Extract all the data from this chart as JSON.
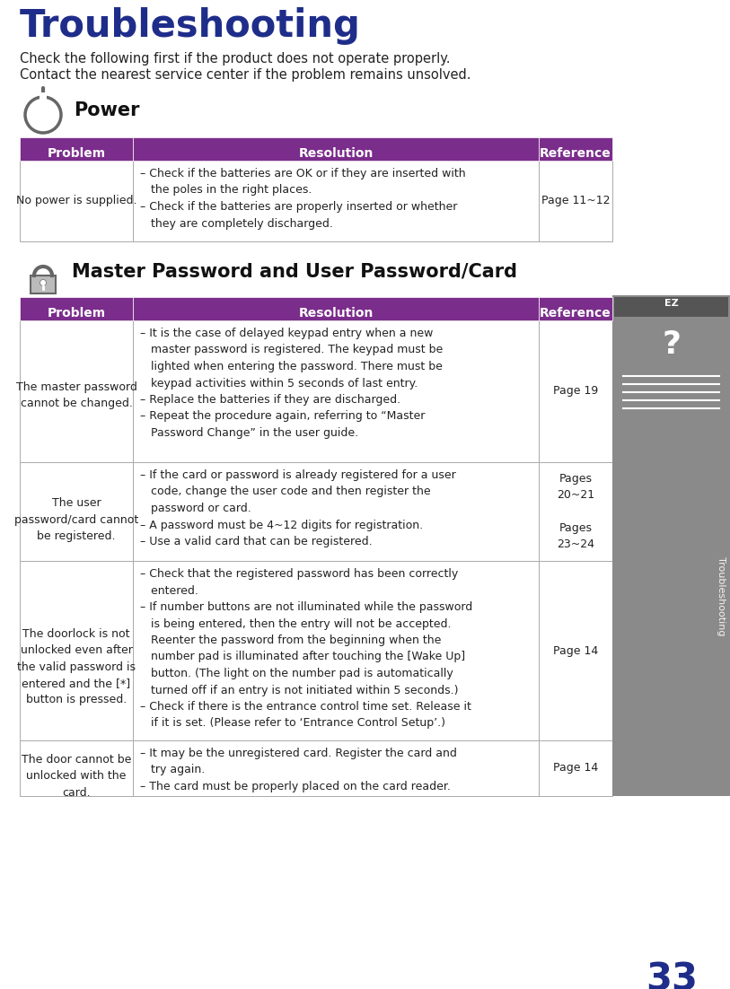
{
  "title": "Troubleshooting",
  "title_color": "#1f2d8a",
  "subtitle_lines": [
    "Check the following first if the product does not operate properly.",
    "Contact the nearest service center if the problem remains unsolved."
  ],
  "header_bg": "#7b2d8b",
  "header_text_color": "#ffffff",
  "border_color": "#aaaaaa",
  "text_color": "#222222",
  "page_number": "33",
  "page_bg": "#ffffff",
  "section1_title": "Power",
  "section2_title": "Master Password and User Password/Card",
  "table_headers": [
    "Problem",
    "Resolution",
    "Reference"
  ],
  "power_rows": [
    {
      "problem": "No power is supplied.",
      "resolution": "– Check if the batteries are OK or if they are inserted with\n   the poles in the right places.\n– Check if the batteries are properly inserted or whether\n   they are completely discharged.",
      "reference": "Page 11~12"
    }
  ],
  "password_rows": [
    {
      "problem": "The master password\ncannot be changed.",
      "resolution": "– It is the case of delayed keypad entry when a new\n   master password is registered. The keypad must be\n   lighted when entering the password. There must be\n   keypad activities within 5 seconds of last entry.\n– Replace the batteries if they are discharged.\n– Repeat the procedure again, referring to “Master\n   Password Change” in the user guide.",
      "reference": "Page 19"
    },
    {
      "problem": "The user\npassword/card cannot\nbe registered.",
      "resolution": "– If the card or password is already registered for a user\n   code, change the user code and then register the\n   password or card.\n– A password must be 4~12 digits for registration.\n– Use a valid card that can be registered.",
      "reference": "Pages\n20~21\n\nPages\n23~24"
    },
    {
      "problem": "The doorlock is not\nunlocked even after\nthe valid password is\nentered and the [*]\nbutton is pressed.",
      "resolution": "– Check that the registered password has been correctly\n   entered.\n– If number buttons are not illuminated while the password\n   is being entered, then the entry will not be accepted.\n   Reenter the password from the beginning when the\n   number pad is illuminated after touching the [Wake Up]\n   button. (The light on the number pad is automatically\n   turned off if an entry is not initiated within 5 seconds.)\n– Check if there is the entrance control time set. Release it\n   if it is set. (Please refer to ‘Entrance Control Setup’.)",
      "reference": "Page 14"
    },
    {
      "problem": "The door cannot be\nunlocked with the\ncard.",
      "resolution": "– It may be the unregistered card. Register the card and\n   try again.\n– The card must be properly placed on the card reader.",
      "reference": "Page 14"
    }
  ]
}
